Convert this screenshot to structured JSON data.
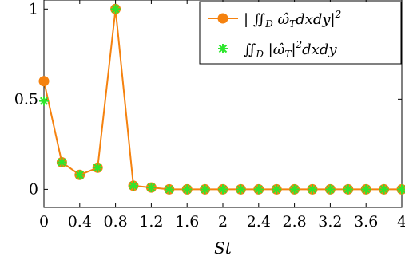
{
  "chart_data": {
    "type": "line",
    "xlabel": "St",
    "ylabel": "",
    "xlim": [
      0,
      4
    ],
    "ylim": [
      -0.1,
      1.05
    ],
    "x_ticks": [
      0,
      0.4,
      0.8,
      1.2,
      1.6,
      2,
      2.4,
      2.8,
      3.2,
      3.6,
      4
    ],
    "x_tick_labels": [
      "0",
      "0.4",
      "0.8",
      "1.2",
      "1.6",
      "2",
      "2.4",
      "2.8",
      "3.2",
      "3.6",
      "4"
    ],
    "y_ticks": [
      0,
      0.5,
      1
    ],
    "y_tick_labels": [
      "0",
      "0.5",
      "1"
    ],
    "legend_position": "top-right",
    "x": [
      0,
      0.2,
      0.4,
      0.6,
      0.8,
      1.0,
      1.2,
      1.4,
      1.6,
      1.8,
      2.0,
      2.2,
      2.4,
      2.6,
      2.8,
      3.0,
      3.2,
      3.4,
      3.6,
      3.8,
      4.0
    ],
    "series": [
      {
        "name": "| ∬_D ω̂_T dxdy |²",
        "color": "#f5820f",
        "marker": "circle",
        "line": true,
        "values": [
          0.6,
          0.15,
          0.08,
          0.12,
          1.0,
          0.02,
          0.01,
          0.0,
          0.0,
          0.0,
          0.0,
          0.0,
          0.0,
          0.0,
          0.0,
          0.0,
          0.0,
          0.0,
          0.0,
          0.0,
          0.0
        ]
      },
      {
        "name": "∬_D |ω̂_T|² dxdy",
        "color": "#2ee62e",
        "marker": "asterisk",
        "line": false,
        "values": [
          0.49,
          0.15,
          0.08,
          0.12,
          1.0,
          0.02,
          0.01,
          0.0,
          0.0,
          0.0,
          0.0,
          0.0,
          0.0,
          0.0,
          0.0,
          0.0,
          0.0,
          0.0,
          0.0,
          0.0,
          0.0
        ]
      }
    ]
  }
}
